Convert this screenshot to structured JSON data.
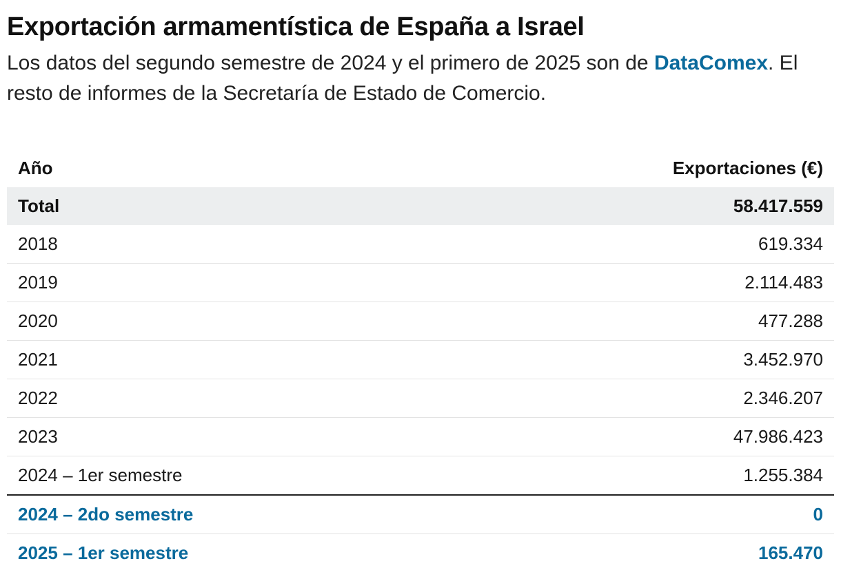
{
  "header": {
    "title": "Exportación armamentística de España a Israel",
    "subtitle_part1": "Los datos del segundo semestre de 2024 y el primero de 2025 son de ",
    "subtitle_link": "DataComex",
    "subtitle_part2": ". El resto de informes de la Secretaría de Estado de Comercio."
  },
  "table": {
    "col_year": "Año",
    "col_exports": "Exportaciones (€)",
    "total_label": "Total",
    "total_value": "58.417.559",
    "rows": [
      {
        "year": "2018",
        "value": "619.334"
      },
      {
        "year": "2019",
        "value": "2.114.483"
      },
      {
        "year": "2020",
        "value": "477.288"
      },
      {
        "year": "2021",
        "value": "3.452.970"
      },
      {
        "year": "2022",
        "value": "2.346.207"
      },
      {
        "year": "2023",
        "value": "47.986.423"
      },
      {
        "year": "2024 – 1er semestre",
        "value": "1.255.384"
      }
    ],
    "highlight_rows": [
      {
        "year": "2024 – 2do semestre",
        "value": "0"
      },
      {
        "year": "2025 – 1er semestre",
        "value": "165.470"
      }
    ]
  },
  "colors": {
    "accent": "#0a6a9c",
    "total_row_bg": "#eceeef",
    "row_divider": "#e3e3e3"
  }
}
